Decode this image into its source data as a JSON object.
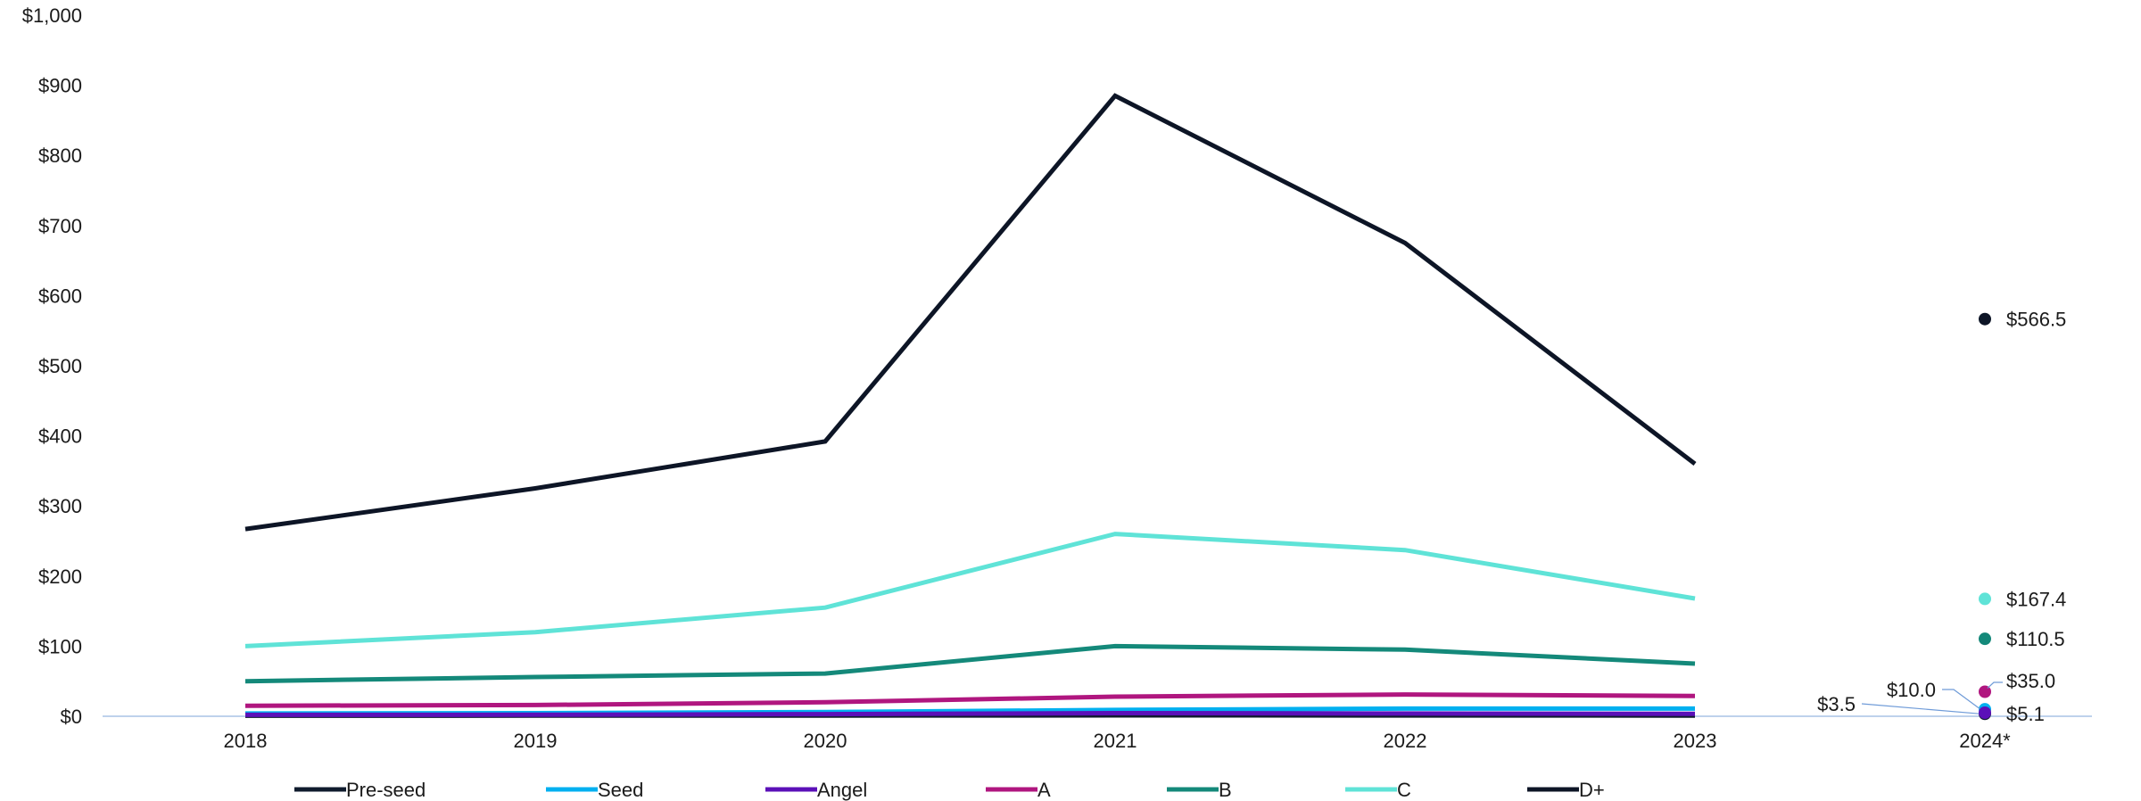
{
  "chart_data": {
    "type": "line",
    "title": "",
    "xlabel": "",
    "ylabel": "",
    "categories": [
      "2018",
      "2019",
      "2020",
      "2021",
      "2022",
      "2023",
      "2024*"
    ],
    "y_ticks": [
      "$0",
      "$100",
      "$200",
      "$300",
      "$400",
      "$500",
      "$600",
      "$700",
      "$800",
      "$900",
      "$1,000"
    ],
    "ylim": [
      0,
      1000
    ],
    "grid": false,
    "legend_position": "bottom",
    "series": [
      {
        "name": "Pre-seed",
        "color": "#0f1b2d",
        "values": [
          0.8,
          0.9,
          1.0,
          1.3,
          1.2,
          1.0,
          3.5
        ],
        "label_2024": "$3.5"
      },
      {
        "name": "Seed",
        "color": "#00b0f0",
        "values": [
          4.0,
          4.5,
          6.0,
          9.0,
          11.0,
          11.0,
          10.0
        ],
        "label_2024": "$10.0"
      },
      {
        "name": "Angel",
        "color": "#5b10b8",
        "values": [
          2.0,
          2.2,
          3.0,
          4.5,
          4.0,
          3.5,
          5.1
        ],
        "label_2024": "$5.1"
      },
      {
        "name": "A",
        "color": "#b0167f",
        "values": [
          15,
          16,
          20,
          28,
          31,
          29,
          35.0
        ],
        "label_2024": "$35.0"
      },
      {
        "name": "B",
        "color": "#14897a",
        "values": [
          50,
          56,
          61,
          100,
          95,
          75,
          110.5
        ],
        "label_2024": "$110.5"
      },
      {
        "name": "C",
        "color": "#5fe3d7",
        "values": [
          100,
          120,
          155,
          260,
          237,
          168,
          167.4
        ],
        "label_2024": "$167.4"
      },
      {
        "name": "D+",
        "color": "#0d1526",
        "values": [
          267,
          325,
          392,
          885,
          675,
          360,
          566.5
        ],
        "label_2024": "$566.5"
      }
    ]
  }
}
